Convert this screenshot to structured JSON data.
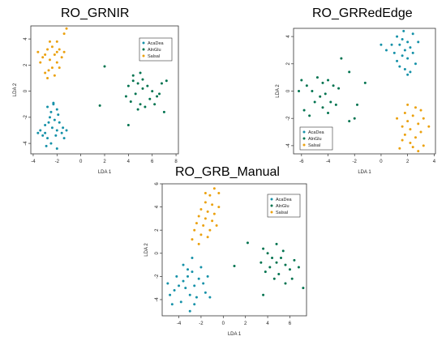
{
  "chart_data": [
    {
      "type": "scatter",
      "title": "RO_GRNIR",
      "xlabel": "LDA 1",
      "ylabel": "LDA 2",
      "xlim": [
        -4.2,
        8.2
      ],
      "ylim": [
        -4.8,
        5.0
      ],
      "xticks": [
        -4,
        -2,
        0,
        2,
        4,
        6,
        8
      ],
      "yticks": [
        -4,
        -2,
        0,
        2,
        4
      ],
      "legend_position": "top-right",
      "series": [
        {
          "name": "AcaDea",
          "color": "#1591a8",
          "points": [
            [
              -2.8,
              -1.2
            ],
            [
              -2.5,
              -1.6
            ],
            [
              -2.3,
              -1.0
            ],
            [
              -2.0,
              -1.4
            ],
            [
              -2.6,
              -2.0
            ],
            [
              -2.2,
              -2.2
            ],
            [
              -1.8,
              -2.4
            ],
            [
              -3.0,
              -2.6
            ],
            [
              -2.4,
              -2.8
            ],
            [
              -2.0,
              -3.0
            ],
            [
              -3.4,
              -3.0
            ],
            [
              -3.0,
              -3.2
            ],
            [
              -1.6,
              -3.2
            ],
            [
              -1.4,
              -3.6
            ],
            [
              -2.8,
              -3.6
            ],
            [
              -3.2,
              -3.4
            ],
            [
              -2.5,
              -4.0
            ],
            [
              -2.0,
              -4.4
            ],
            [
              -3.6,
              -3.2
            ],
            [
              -1.2,
              -3.0
            ],
            [
              -2.9,
              -4.2
            ],
            [
              -1.9,
              -1.8
            ],
            [
              -2.7,
              -2.4
            ],
            [
              -1.5,
              -2.8
            ],
            [
              -2.1,
              -3.4
            ],
            [
              -2.3,
              -0.9
            ]
          ]
        },
        {
          "name": "AlnGlu",
          "color": "#00734f",
          "points": [
            [
              4.0,
              0.4
            ],
            [
              4.4,
              0.8
            ],
            [
              4.8,
              0.6
            ],
            [
              5.2,
              0.2
            ],
            [
              4.6,
              -0.2
            ],
            [
              5.6,
              0.4
            ],
            [
              6.0,
              0.0
            ],
            [
              5.8,
              -0.6
            ],
            [
              6.4,
              -0.4
            ],
            [
              6.8,
              0.6
            ],
            [
              7.2,
              0.8
            ],
            [
              4.2,
              -0.8
            ],
            [
              5.0,
              -1.0
            ],
            [
              5.4,
              -1.2
            ],
            [
              4.8,
              -1.4
            ],
            [
              6.2,
              -1.0
            ],
            [
              7.0,
              -1.6
            ],
            [
              4.0,
              -2.6
            ],
            [
              3.8,
              -0.4
            ],
            [
              4.4,
              1.2
            ],
            [
              5.0,
              1.4
            ],
            [
              2.0,
              1.9
            ],
            [
              1.6,
              -1.1
            ],
            [
              6.6,
              -0.2
            ],
            [
              5.2,
              0.9
            ]
          ]
        },
        {
          "name": "Salsal",
          "color": "#eba10e",
          "points": [
            [
              -1.2,
              4.8
            ],
            [
              -1.4,
              4.4
            ],
            [
              -2.0,
              3.8
            ],
            [
              -2.4,
              3.4
            ],
            [
              -1.8,
              3.2
            ],
            [
              -2.8,
              3.2
            ],
            [
              -3.0,
              2.8
            ],
            [
              -2.2,
              2.8
            ],
            [
              -1.6,
              2.6
            ],
            [
              -2.6,
              2.4
            ],
            [
              -2.0,
              2.2
            ],
            [
              -3.4,
              2.2
            ],
            [
              -2.4,
              1.8
            ],
            [
              -1.8,
              1.8
            ],
            [
              -3.0,
              1.4
            ],
            [
              -2.8,
              1.0
            ],
            [
              -2.2,
              1.2
            ],
            [
              -3.6,
              3.0
            ],
            [
              -2.6,
              3.8
            ],
            [
              -1.4,
              3.0
            ],
            [
              -3.2,
              2.6
            ],
            [
              -2.0,
              3.0
            ],
            [
              -2.7,
              1.6
            ]
          ]
        }
      ]
    },
    {
      "type": "scatter",
      "title": "RO_GRRedEdge",
      "xlabel": "LDA 1",
      "ylabel": "LDA 2",
      "xlim": [
        -6.6,
        4.1
      ],
      "ylim": [
        -4.6,
        4.6
      ],
      "xticks": [
        -6,
        -4,
        -2,
        0,
        2,
        4
      ],
      "yticks": [
        -4,
        -2,
        0,
        2,
        4
      ],
      "legend_position": "bottom-left",
      "series": [
        {
          "name": "AcaDea",
          "color": "#1591a8",
          "points": [
            [
              1.2,
              4.0
            ],
            [
              1.6,
              3.8
            ],
            [
              2.0,
              3.6
            ],
            [
              1.4,
              3.4
            ],
            [
              2.2,
              3.2
            ],
            [
              1.8,
              3.0
            ],
            [
              2.4,
              2.8
            ],
            [
              1.6,
              2.6
            ],
            [
              2.0,
              2.4
            ],
            [
              1.2,
              2.2
            ],
            [
              2.6,
              2.0
            ],
            [
              1.8,
              1.6
            ],
            [
              2.2,
              1.4
            ],
            [
              1.4,
              1.8
            ],
            [
              2.8,
              3.6
            ],
            [
              0.8,
              3.4
            ],
            [
              2.0,
              1.2
            ],
            [
              1.0,
              2.8
            ],
            [
              0.0,
              3.4
            ],
            [
              2.4,
              4.2
            ],
            [
              1.7,
              4.4
            ],
            [
              0.4,
              3.0
            ]
          ]
        },
        {
          "name": "AlnGlu",
          "color": "#00734f",
          "points": [
            [
              -6.0,
              0.8
            ],
            [
              -5.6,
              0.4
            ],
            [
              -5.2,
              0.0
            ],
            [
              -4.8,
              1.0
            ],
            [
              -4.4,
              0.6
            ],
            [
              -4.0,
              0.8
            ],
            [
              -3.6,
              0.4
            ],
            [
              -4.2,
              -0.2
            ],
            [
              -4.6,
              -0.4
            ],
            [
              -5.0,
              -0.8
            ],
            [
              -3.8,
              -0.8
            ],
            [
              -4.4,
              -1.2
            ],
            [
              -3.4,
              -1.0
            ],
            [
              -5.8,
              -1.4
            ],
            [
              -3.0,
              2.4
            ],
            [
              -2.4,
              1.4
            ],
            [
              -1.8,
              -1.0
            ],
            [
              -1.2,
              0.6
            ],
            [
              -2.0,
              -2.0
            ],
            [
              -6.2,
              0.0
            ],
            [
              -5.4,
              -1.8
            ],
            [
              -4.0,
              -1.6
            ],
            [
              -2.4,
              -2.2
            ],
            [
              -3.2,
              0.2
            ]
          ]
        },
        {
          "name": "Salsal",
          "color": "#eba10e",
          "points": [
            [
              2.0,
              -1.0
            ],
            [
              2.6,
              -1.2
            ],
            [
              3.0,
              -1.4
            ],
            [
              1.8,
              -1.6
            ],
            [
              2.4,
              -1.8
            ],
            [
              3.2,
              -2.0
            ],
            [
              2.0,
              -2.2
            ],
            [
              2.8,
              -2.4
            ],
            [
              1.6,
              -2.6
            ],
            [
              2.2,
              -2.8
            ],
            [
              3.0,
              -3.0
            ],
            [
              1.8,
              -3.2
            ],
            [
              2.6,
              -3.4
            ],
            [
              2.2,
              -3.8
            ],
            [
              3.2,
              -4.0
            ],
            [
              1.4,
              -4.2
            ],
            [
              2.8,
              -4.4
            ],
            [
              1.2,
              -2.0
            ],
            [
              3.6,
              -2.6
            ],
            [
              2.4,
              -4.1
            ],
            [
              1.6,
              -3.6
            ]
          ]
        }
      ]
    },
    {
      "type": "scatter",
      "title": "RO_GRB_Manual",
      "xlabel": "LDA 1",
      "ylabel": "LDA 2",
      "xlim": [
        -5.5,
        7.5
      ],
      "ylim": [
        -5.4,
        6.0
      ],
      "xticks": [
        -4,
        -2,
        0,
        2,
        4,
        6
      ],
      "yticks": [
        -4,
        -2,
        0,
        2,
        4,
        6
      ],
      "legend_position": "top-right",
      "series": [
        {
          "name": "AcaDea",
          "color": "#1591a8",
          "points": [
            [
              -4.8,
              -3.6
            ],
            [
              -4.4,
              -3.2
            ],
            [
              -4.0,
              -2.8
            ],
            [
              -3.6,
              -2.4
            ],
            [
              -3.2,
              -2.0
            ],
            [
              -2.8,
              -1.6
            ],
            [
              -3.4,
              -3.0
            ],
            [
              -2.6,
              -2.8
            ],
            [
              -2.2,
              -2.2
            ],
            [
              -1.8,
              -2.6
            ],
            [
              -3.0,
              -3.6
            ],
            [
              -2.4,
              -3.8
            ],
            [
              -1.6,
              -3.4
            ],
            [
              -3.8,
              -4.2
            ],
            [
              -3.0,
              -5.0
            ],
            [
              -2.0,
              -1.2
            ],
            [
              -4.2,
              -2.0
            ],
            [
              -1.4,
              -2.0
            ],
            [
              -3.6,
              -1.0
            ],
            [
              -2.8,
              -0.4
            ],
            [
              -5.0,
              -2.6
            ],
            [
              -4.6,
              -4.4
            ],
            [
              -2.6,
              -4.4
            ],
            [
              -1.2,
              -3.8
            ],
            [
              -3.2,
              -1.4
            ]
          ]
        },
        {
          "name": "AlnGlu",
          "color": "#00734f",
          "points": [
            [
              3.6,
              0.4
            ],
            [
              4.0,
              0.0
            ],
            [
              4.4,
              -0.4
            ],
            [
              4.8,
              -0.8
            ],
            [
              5.2,
              -0.4
            ],
            [
              5.6,
              -1.0
            ],
            [
              6.0,
              -1.4
            ],
            [
              4.2,
              -1.2
            ],
            [
              3.8,
              -1.6
            ],
            [
              5.0,
              -1.8
            ],
            [
              4.6,
              -2.2
            ],
            [
              6.4,
              -0.6
            ],
            [
              6.8,
              -1.2
            ],
            [
              7.2,
              -3.0
            ],
            [
              5.6,
              -2.6
            ],
            [
              3.6,
              -3.6
            ],
            [
              2.2,
              0.9
            ],
            [
              1.0,
              -1.1
            ],
            [
              4.8,
              0.8
            ],
            [
              6.2,
              -2.2
            ],
            [
              3.4,
              -0.8
            ],
            [
              5.4,
              0.2
            ]
          ]
        },
        {
          "name": "Salsal",
          "color": "#eba10e",
          "points": [
            [
              -0.8,
              5.6
            ],
            [
              -1.2,
              5.0
            ],
            [
              -0.4,
              5.2
            ],
            [
              -1.6,
              4.4
            ],
            [
              -1.0,
              4.2
            ],
            [
              -2.0,
              3.8
            ],
            [
              -1.4,
              3.6
            ],
            [
              -0.8,
              3.4
            ],
            [
              -2.2,
              3.2
            ],
            [
              -1.6,
              3.0
            ],
            [
              -1.0,
              2.8
            ],
            [
              -2.4,
              2.6
            ],
            [
              -1.8,
              2.4
            ],
            [
              -1.2,
              2.0
            ],
            [
              -2.6,
              2.0
            ],
            [
              -2.0,
              1.6
            ],
            [
              -1.4,
              1.4
            ],
            [
              -2.8,
              1.2
            ],
            [
              -0.4,
              4.0
            ],
            [
              -2.2,
              0.8
            ],
            [
              -1.6,
              5.2
            ],
            [
              -0.6,
              2.4
            ]
          ]
        }
      ]
    }
  ]
}
